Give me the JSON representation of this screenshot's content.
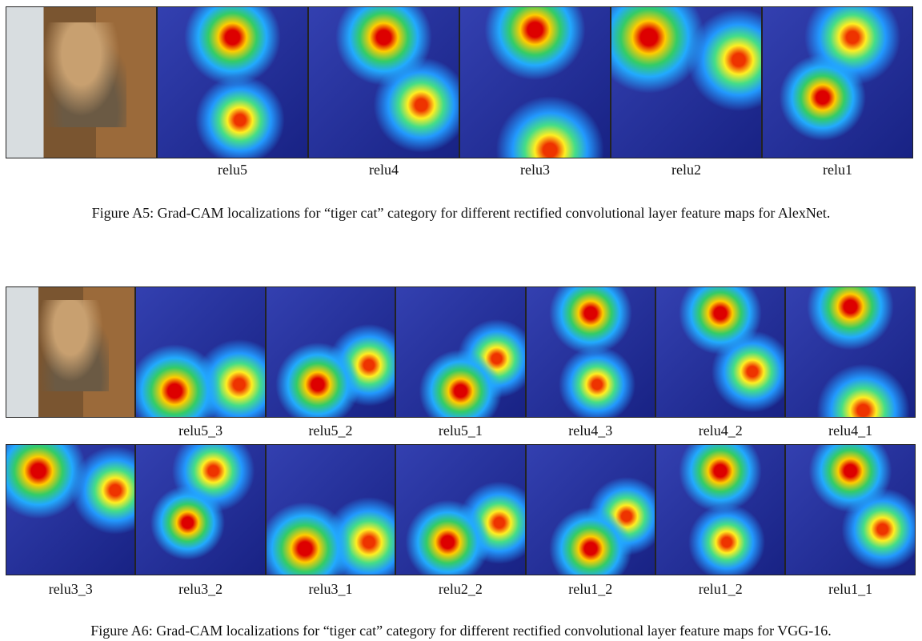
{
  "figure_a5": {
    "labels": [
      "relu5",
      "relu4",
      "relu3",
      "relu2",
      "relu1"
    ],
    "caption": "Figure A5: Grad-CAM localizations for “tiger cat” category for different rectified convolutional layer feature maps for AlexNet."
  },
  "figure_a6": {
    "rows": [
      [
        "relu5_3",
        "relu5_2",
        "relu5_1",
        "relu4_3",
        "relu4_2",
        "relu4_1"
      ],
      [
        "relu3_3",
        "relu3_2",
        "relu3_1",
        "relu2_2",
        "relu1_2",
        "relu1_2",
        "relu1_1"
      ]
    ],
    "caption": "Figure A6: Grad-CAM localizations for “tiger cat” category for different rectified convolutional layer feature maps for VGG-16."
  }
}
